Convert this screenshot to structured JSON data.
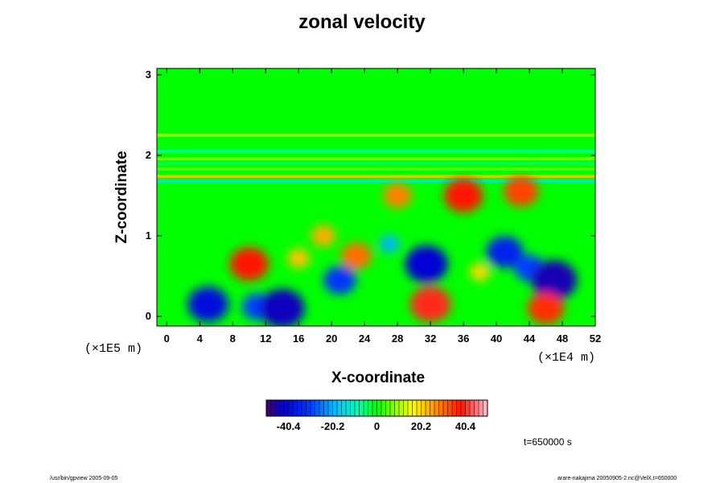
{
  "chart_data": {
    "type": "heatmap",
    "title": "zonal velocity",
    "xlabel": "X-coordinate",
    "ylabel": "Z-coordinate",
    "x_scale_label": "(×1E4 m)",
    "y_scale_label": "(×1E5 m)",
    "x_ticks": [
      "0",
      "4",
      "8",
      "12",
      "16",
      "20",
      "24",
      "28",
      "32",
      "36",
      "40",
      "44",
      "48",
      "52"
    ],
    "y_ticks": [
      "0",
      "1",
      "2",
      "3"
    ],
    "xlim": [
      -1.2,
      52
    ],
    "ylim": [
      -0.12,
      3.08
    ],
    "colorbar": {
      "ticks": [
        {
          "label": "-40.4",
          "value": -40.4
        },
        {
          "label": "-20.2",
          "value": -20.2
        },
        {
          "label": "0",
          "value": 0
        },
        {
          "label": "20.2",
          "value": 20.2
        },
        {
          "label": "40.4",
          "value": 40.4
        }
      ],
      "range": [
        -50.5,
        50.5
      ]
    },
    "time_label": "t=650000 s",
    "features": [
      {
        "x": 10,
        "z": 0.65,
        "value": 38
      },
      {
        "x": 16,
        "z": 0.72,
        "value": 22
      },
      {
        "x": 5,
        "z": 0.15,
        "value": -40
      },
      {
        "x": 11,
        "z": 0.12,
        "value": -30
      },
      {
        "x": 14,
        "z": 0.1,
        "value": -44
      },
      {
        "x": 41,
        "z": 0.8,
        "value": -36
      },
      {
        "x": 44,
        "z": 0.6,
        "value": -30
      },
      {
        "x": 47,
        "z": 0.45,
        "value": -45
      },
      {
        "x": 31.5,
        "z": 0.65,
        "value": -42
      },
      {
        "x": 32,
        "z": 0.15,
        "value": 40
      },
      {
        "x": 46,
        "z": 0.1,
        "value": 36
      },
      {
        "x": 21,
        "z": 0.45,
        "value": -32
      },
      {
        "x": 36,
        "z": 1.5,
        "value": 38
      },
      {
        "x": 43,
        "z": 1.55,
        "value": 34
      },
      {
        "x": 28,
        "z": 1.5,
        "value": 28
      },
      {
        "x": 23,
        "z": 0.75,
        "value": 30
      },
      {
        "x": 27,
        "z": 0.9,
        "value": -20
      },
      {
        "x": 38,
        "z": 0.55,
        "value": 20
      },
      {
        "x": 19,
        "z": 1.0,
        "value": 24
      }
    ]
  },
  "footer": {
    "left_text": "/usr/bin/gpview 2005-09-05",
    "right_text": "arare-nakajima 20050905-2.nc@VelX,t=650000"
  },
  "colors": {
    "background": "#ffffff",
    "field_base": "#00ff00"
  }
}
